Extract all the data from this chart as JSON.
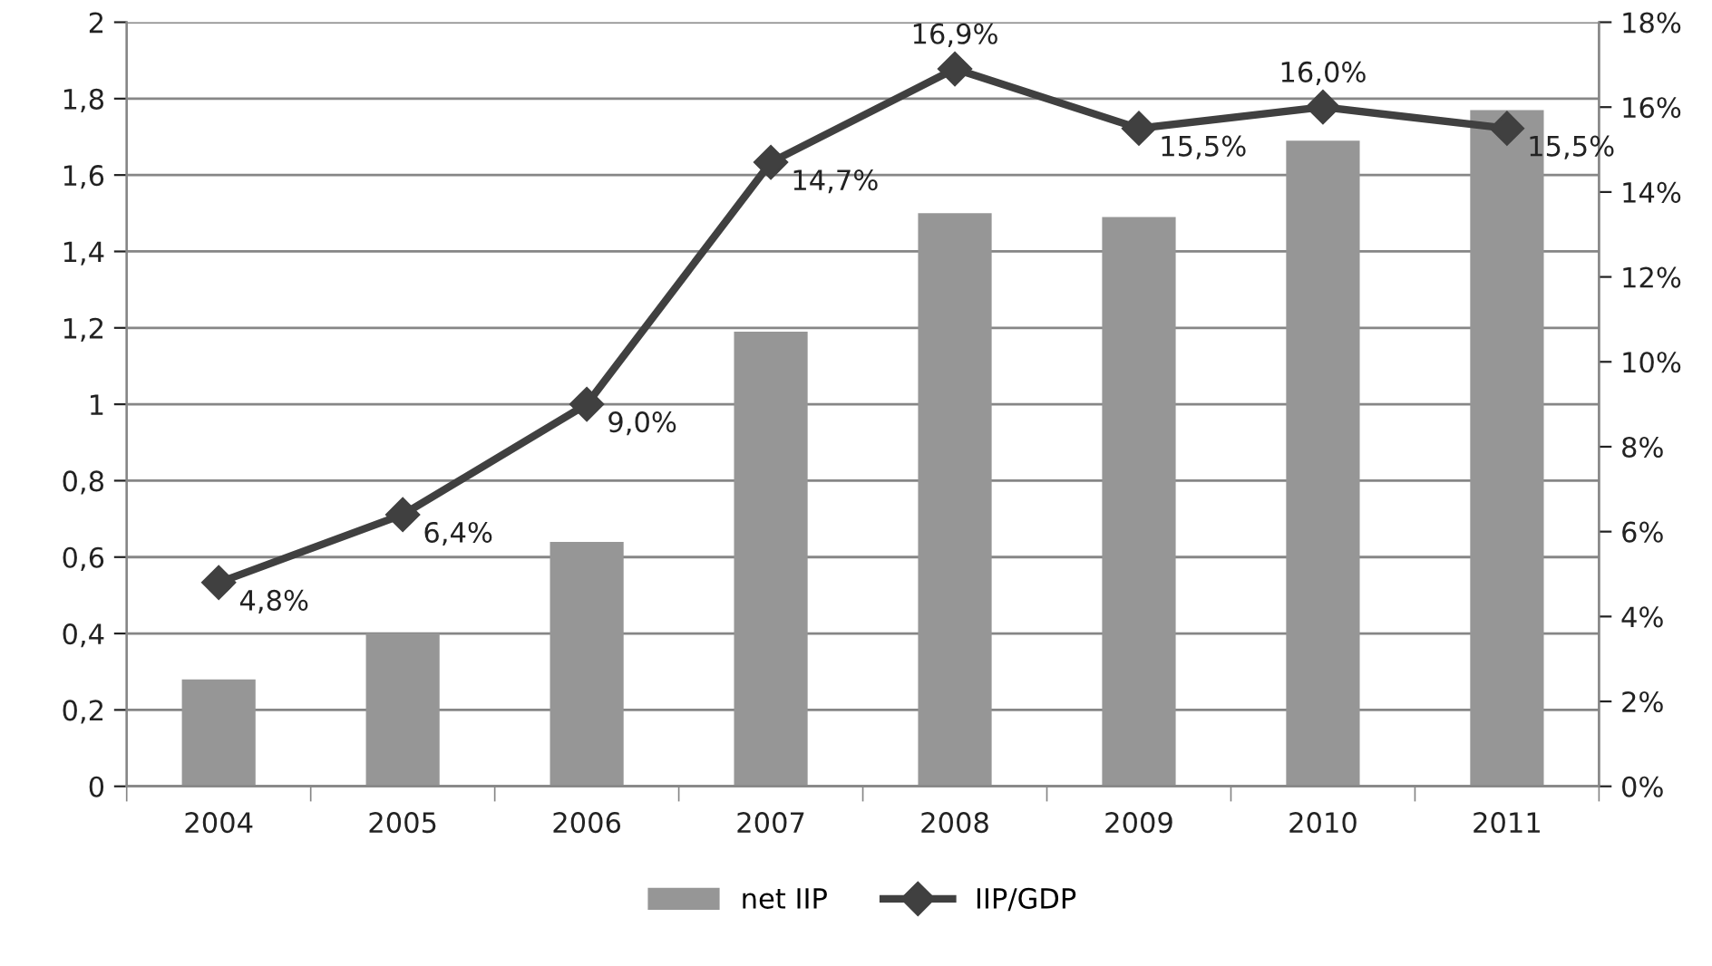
{
  "chart_data": {
    "type": "bar",
    "categories": [
      "2004",
      "2005",
      "2006",
      "2007",
      "2008",
      "2009",
      "2010",
      "2011"
    ],
    "series": [
      {
        "name": "net IIP",
        "color": "#969696",
        "values": [
          0.28,
          0.4,
          0.64,
          1.19,
          1.5,
          1.49,
          1.69,
          1.77
        ]
      },
      {
        "name": "IIP/GDP",
        "type": "line",
        "axis": "y2",
        "color": "#404040",
        "marker": "diamond",
        "values": [
          4.8,
          6.4,
          9.0,
          14.7,
          16.9,
          15.5,
          16.0,
          15.5
        ],
        "value_labels": [
          "4,8%",
          "6,4%",
          "9,0%",
          "14,7%",
          "16,9%",
          "15,5%",
          "16,0%",
          "15,5%"
        ]
      }
    ],
    "ylim": [
      0,
      2
    ],
    "yticks": [
      0,
      {
        "value": 0.2,
        "label": "0,2"
      },
      {
        "value": 0.4,
        "label": "0,4"
      },
      {
        "value": 0.6,
        "label": "0,6"
      },
      {
        "value": 0.8,
        "label": "0,8"
      },
      1,
      {
        "value": 1.2,
        "label": "1,2"
      },
      {
        "value": 1.4,
        "label": "1,4"
      },
      {
        "value": 1.6,
        "label": "1,6"
      },
      {
        "value": 1.8,
        "label": "1,8"
      },
      2
    ],
    "y2lim": [
      0,
      18
    ],
    "y2ticks": [
      {
        "value": 0,
        "label": "0%"
      },
      {
        "value": 2,
        "label": "2%"
      },
      {
        "value": 4,
        "label": "4%"
      },
      {
        "value": 6,
        "label": "6%"
      },
      {
        "value": 8,
        "label": "8%"
      },
      {
        "value": 10,
        "label": "10%"
      },
      {
        "value": 12,
        "label": "12%"
      },
      {
        "value": 14,
        "label": "14%"
      },
      {
        "value": 16,
        "label": "16%"
      },
      {
        "value": 18,
        "label": "18%"
      }
    ],
    "grid": "y",
    "legend": "bottom"
  }
}
